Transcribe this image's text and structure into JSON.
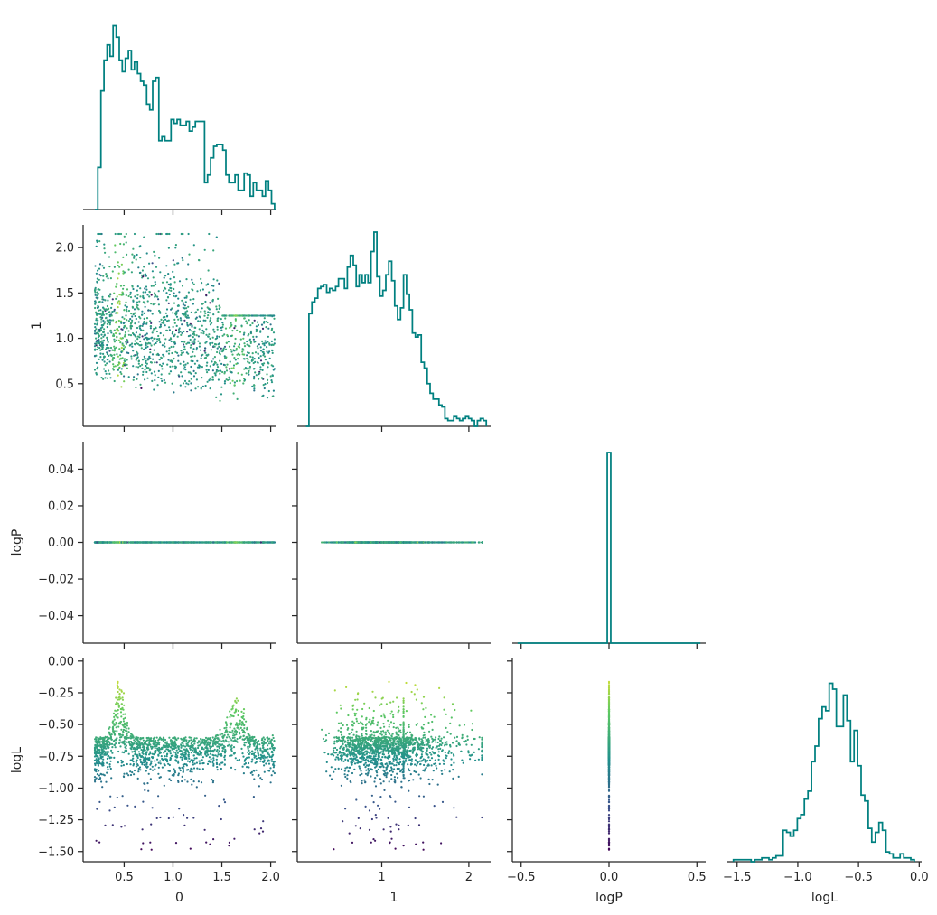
{
  "chart_data": {
    "type": "corner",
    "variables": [
      "0",
      "1",
      "logP",
      "logL"
    ],
    "axis_labels": {
      "x": [
        "0",
        "1",
        "logP",
        "logL"
      ],
      "y": [
        "",
        "1",
        "logP",
        "logL"
      ]
    },
    "ranges": {
      "0": [
        0.08,
        2.05
      ],
      "1": [
        0.03,
        2.25
      ],
      "logP": [
        -0.55,
        0.55
      ],
      "logL": [
        -1.58,
        0.02
      ],
      "logP_y": [
        -0.055,
        0.055
      ]
    },
    "ticks": {
      "0": {
        "values": [
          0.5,
          1.0,
          1.5,
          2.0
        ],
        "labels": [
          "0.5",
          "1.0",
          "1.5",
          "2.0"
        ]
      },
      "1_x": {
        "values": [
          1,
          2
        ],
        "labels": [
          "1",
          "2"
        ]
      },
      "1_y": {
        "values": [
          0.5,
          1.0,
          1.5,
          2.0
        ],
        "labels": [
          "0.5",
          "1.0",
          "1.5",
          "2.0"
        ]
      },
      "logP_x": {
        "values": [
          -0.5,
          0.0,
          0.5
        ],
        "labels": [
          "−0.5",
          "0.0",
          "0.5"
        ]
      },
      "logP_y": {
        "values": [
          0.04,
          0.02,
          0.0,
          -0.02,
          -0.04
        ],
        "labels": [
          "0.04",
          "0.02",
          "0.00",
          "−0.02",
          "−0.04"
        ]
      },
      "logL_x": {
        "values": [
          -1.5,
          -1.0,
          -0.5,
          0.0
        ],
        "labels": [
          "−1.5",
          "−1.0",
          "−0.5",
          "0.0"
        ]
      },
      "logL_y": {
        "values": [
          0.0,
          -0.25,
          -0.5,
          -0.75,
          -1.0,
          -1.25,
          -1.5
        ],
        "labels": [
          "0.00",
          "−0.25",
          "−0.50",
          "−0.75",
          "−1.00",
          "−1.25",
          "−1.50"
        ]
      }
    },
    "histograms": {
      "0": {
        "x_start": 0.2,
        "x_end": 2.04,
        "counts": [
          0.0,
          0.22,
          0.62,
          0.78,
          0.86,
          0.8,
          0.96,
          0.9,
          0.78,
          0.72,
          0.79,
          0.83,
          0.73,
          0.77,
          0.71,
          0.67,
          0.65,
          0.55,
          0.52,
          0.67,
          0.69,
          0.36,
          0.38,
          0.36,
          0.36,
          0.47,
          0.45,
          0.47,
          0.44,
          0.44,
          0.46,
          0.41,
          0.43,
          0.46,
          0.46,
          0.46,
          0.14,
          0.18,
          0.27,
          0.33,
          0.34,
          0.34,
          0.31,
          0.18,
          0.14,
          0.14,
          0.18,
          0.1,
          0.1,
          0.19,
          0.18,
          0.07,
          0.14,
          0.1,
          0.1,
          0.07,
          0.15,
          0.1,
          0.03
        ]
      },
      "1": {
        "x_start": 0.13,
        "x_end": 2.2,
        "counts": [
          0.0,
          0.58,
          0.64,
          0.66,
          0.71,
          0.72,
          0.73,
          0.69,
          0.71,
          0.7,
          0.72,
          0.76,
          0.76,
          0.71,
          0.82,
          0.88,
          0.83,
          0.72,
          0.78,
          0.74,
          0.78,
          0.74,
          0.9,
          1.0,
          0.77,
          0.67,
          0.7,
          0.78,
          0.85,
          0.75,
          0.62,
          0.55,
          0.61,
          0.78,
          0.68,
          0.6,
          0.48,
          0.46,
          0.47,
          0.33,
          0.3,
          0.22,
          0.17,
          0.14,
          0.14,
          0.11,
          0.1,
          0.04,
          0.03,
          0.03,
          0.05,
          0.04,
          0.03,
          0.04,
          0.05,
          0.04,
          0.03,
          0.0,
          0.03,
          0.04,
          0.03
        ]
      },
      "logP": {
        "spike_at": 0.0,
        "spike_width": 0.02
      },
      "logL": {
        "x_start": -1.53,
        "x_end": -0.04,
        "counts": [
          0.01,
          0.01,
          0.01,
          0.01,
          0.01,
          0.0,
          0.01,
          0.01,
          0.02,
          0.02,
          0.01,
          0.02,
          0.03,
          0.03,
          0.16,
          0.15,
          0.13,
          0.16,
          0.22,
          0.24,
          0.32,
          0.36,
          0.51,
          0.59,
          0.73,
          0.79,
          0.77,
          0.91,
          0.88,
          0.69,
          0.69,
          0.85,
          0.72,
          0.51,
          0.67,
          0.49,
          0.34,
          0.31,
          0.17,
          0.1,
          0.15,
          0.2,
          0.16,
          0.05,
          0.04,
          0.02,
          0.02,
          0.04,
          0.02,
          0.02,
          0.01
        ]
      }
    },
    "colormap": "viridis",
    "palette": [
      "#440154",
      "#3b528b",
      "#21908c",
      "#5ec962",
      "#fde725"
    ],
    "line_color": "#008080",
    "grid": false,
    "n_points": 1600
  }
}
